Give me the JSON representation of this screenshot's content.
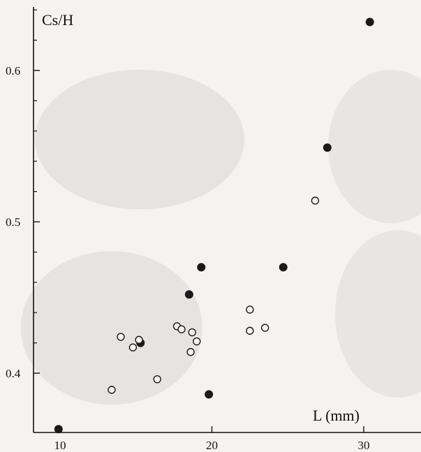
{
  "chart_data": {
    "type": "scatter",
    "title": "",
    "xlabel": "L (mm)",
    "ylabel": "Cs/H",
    "xlim": [
      8,
      34
    ],
    "ylim": [
      0.37,
      0.65
    ],
    "x_ticks": [
      10,
      20,
      30
    ],
    "y_ticks": [
      0.4,
      0.5,
      0.6
    ],
    "y_tick_labels": [
      "0.4",
      "0.5",
      "0.6"
    ],
    "minor_y_ticks": [
      0.42,
      0.44,
      0.46,
      0.48,
      0.52,
      0.54,
      0.56,
      0.58,
      0.62,
      0.64
    ],
    "grid": false,
    "series": [
      {
        "marker": "filled-circle",
        "color": "#1a1a1a",
        "points": [
          [
            9.9,
            0.363
          ],
          [
            15.3,
            0.42
          ],
          [
            18.5,
            0.452
          ],
          [
            19.3,
            0.47
          ],
          [
            19.8,
            0.386
          ],
          [
            24.7,
            0.47
          ],
          [
            27.6,
            0.549
          ],
          [
            30.4,
            0.632
          ]
        ]
      },
      {
        "marker": "open-circle",
        "color": "#1a1a1a",
        "points": [
          [
            13.4,
            0.389
          ],
          [
            14.0,
            0.424
          ],
          [
            14.8,
            0.417
          ],
          [
            15.2,
            0.422
          ],
          [
            16.4,
            0.396
          ],
          [
            17.7,
            0.431
          ],
          [
            18.0,
            0.429
          ],
          [
            18.6,
            0.414
          ],
          [
            18.7,
            0.427
          ],
          [
            19.0,
            0.421
          ],
          [
            22.5,
            0.442
          ],
          [
            22.5,
            0.428
          ],
          [
            23.5,
            0.43
          ],
          [
            26.8,
            0.514
          ]
        ]
      }
    ]
  }
}
